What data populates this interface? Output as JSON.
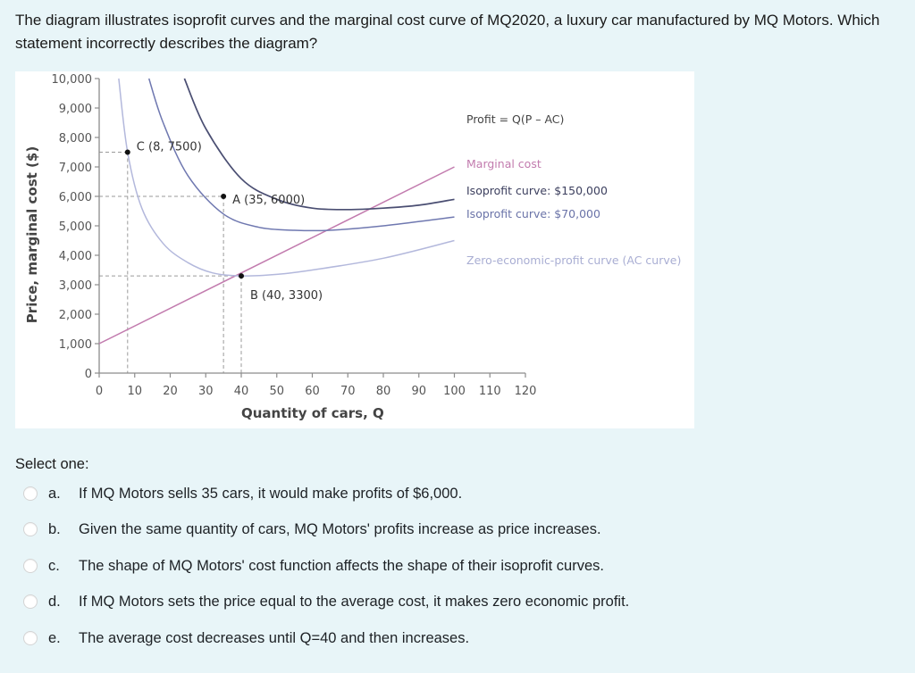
{
  "question": {
    "text": "The diagram illustrates isoprofit curves and the marginal cost curve of MQ2020, a luxury car manufactured by MQ Motors. Which statement incorrectly describes the diagram?"
  },
  "select_label": "Select one:",
  "options": [
    {
      "letter": "a.",
      "text": "If MQ Motors sells 35 cars, it would make profits of $6,000.",
      "selected": false
    },
    {
      "letter": "b.",
      "text": "Given the same quantity of cars, MQ Motors' profits increase as price increases.",
      "selected": false
    },
    {
      "letter": "c.",
      "text": "The shape of MQ Motors' cost function affects the shape of their isoprofit curves.",
      "selected": false
    },
    {
      "letter": "d.",
      "text": "If MQ Motors sets the price equal to the average cost, it makes zero economic profit.",
      "selected": false
    },
    {
      "letter": "e.",
      "text": "The average cost decreases until Q=40 and then increases.",
      "selected": false
    }
  ],
  "colors": {
    "page_bg": "#e8f5f8",
    "isoprofit_150k": "#4a4e72",
    "isoprofit_70k": "#6f78b0",
    "ac_curve": "#b3b8dc",
    "marginal_cost": "#c27bae",
    "axis": "#8c8c8c",
    "guide": "#9a9a9a"
  },
  "chart_data": {
    "type": "line",
    "title": "",
    "xlabel": "Quantity of cars, Q",
    "ylabel": "Price, marginal cost ($)",
    "xlim": [
      0,
      120
    ],
    "ylim": [
      0,
      10000
    ],
    "x_ticks": [
      0,
      10,
      20,
      30,
      40,
      50,
      60,
      70,
      80,
      90,
      100,
      110,
      120
    ],
    "y_ticks": [
      0,
      1000,
      2000,
      3000,
      4000,
      5000,
      6000,
      7000,
      8000,
      9000,
      10000
    ],
    "y_tick_labels": [
      "0",
      "1,000",
      "2,000",
      "3,000",
      "4,000",
      "5,000",
      "6,000",
      "7,000",
      "8,000",
      "9,000",
      "10,000"
    ],
    "grid": false,
    "formula_annotation": "Profit = Q(P – AC)",
    "series": [
      {
        "name": "Marginal cost",
        "x": [
          0,
          20,
          40,
          60,
          80,
          100
        ],
        "y": [
          1000,
          2150,
          3300,
          4500,
          5750,
          7000
        ]
      },
      {
        "name": "Isoprofit curve: $150,000",
        "x": [
          24,
          30,
          40,
          50,
          60,
          70,
          80,
          90,
          100
        ],
        "y": [
          10000,
          8300,
          6600,
          5900,
          5600,
          5550,
          5600,
          5700,
          5900
        ]
      },
      {
        "name": "Isoprofit curve: $70,000",
        "x": [
          14,
          18,
          25,
          35,
          45,
          55,
          65,
          80,
          100
        ],
        "y": [
          10000,
          8500,
          6700,
          5400,
          4950,
          4850,
          4850,
          5000,
          5300
        ]
      },
      {
        "name": "Zero-economic-profit curve (AC curve)",
        "x": [
          5.5,
          8,
          12,
          18,
          25,
          32,
          40,
          50,
          60,
          80,
          100
        ],
        "y": [
          10000,
          7500,
          5600,
          4400,
          3750,
          3400,
          3300,
          3350,
          3500,
          3900,
          4500
        ]
      }
    ],
    "points": [
      {
        "label": "C (8, 7500)",
        "x": 8,
        "y": 7500
      },
      {
        "label": "A (35, 6000)",
        "x": 35,
        "y": 6000
      },
      {
        "label": "B (40, 3300)",
        "x": 40,
        "y": 3300
      }
    ],
    "legend_position": "right (inline labels at curve ends)"
  }
}
